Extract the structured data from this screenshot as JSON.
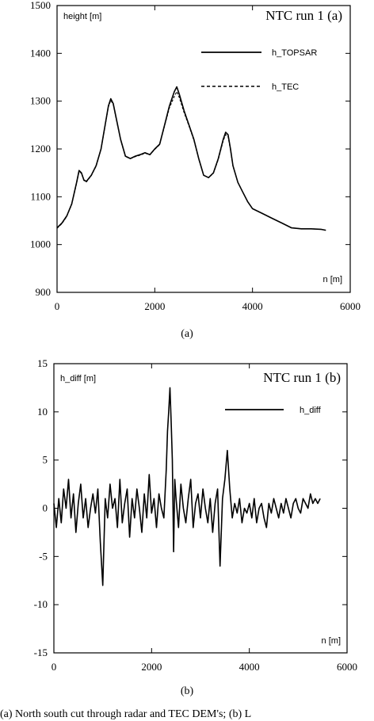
{
  "caption_fragment": "(a) North south cut through radar and TEC DEM's; (b) L",
  "chart_data": [
    {
      "type": "line",
      "title": "NTC run 1 (a)",
      "ylabel": "height [m]",
      "xlabel": "n [m]",
      "xlim": [
        0,
        6000
      ],
      "ylim": [
        900,
        1500
      ],
      "xticks": [
        0,
        2000,
        4000,
        6000
      ],
      "yticks": [
        900,
        1000,
        1100,
        1200,
        1300,
        1400,
        1500
      ],
      "legend_position": "top-right",
      "sublabel": "(a)",
      "series": [
        {
          "name": "h_TOPSAR",
          "style": "solid",
          "x": [
            0,
            100,
            200,
            300,
            400,
            450,
            500,
            550,
            600,
            700,
            800,
            900,
            1000,
            1050,
            1100,
            1150,
            1200,
            1300,
            1400,
            1500,
            1600,
            1700,
            1800,
            1900,
            2000,
            2100,
            2200,
            2300,
            2400,
            2450,
            2500,
            2600,
            2700,
            2800,
            2900,
            3000,
            3100,
            3200,
            3300,
            3400,
            3450,
            3500,
            3550,
            3600,
            3700,
            3800,
            3900,
            4000,
            4200,
            4400,
            4600,
            4800,
            5000,
            5200,
            5400,
            5500
          ],
          "y": [
            1035,
            1045,
            1060,
            1085,
            1130,
            1155,
            1150,
            1135,
            1132,
            1145,
            1165,
            1200,
            1260,
            1290,
            1305,
            1295,
            1270,
            1220,
            1185,
            1180,
            1185,
            1188,
            1192,
            1188,
            1200,
            1210,
            1250,
            1290,
            1320,
            1330,
            1315,
            1280,
            1250,
            1220,
            1180,
            1145,
            1140,
            1150,
            1180,
            1220,
            1235,
            1230,
            1200,
            1165,
            1130,
            1110,
            1090,
            1075,
            1065,
            1055,
            1045,
            1035,
            1033,
            1033,
            1032,
            1030
          ]
        },
        {
          "name": "h_TEC",
          "style": "dashed",
          "x": [
            0,
            100,
            200,
            300,
            400,
            450,
            500,
            550,
            600,
            700,
            800,
            900,
            1000,
            1050,
            1100,
            1150,
            1200,
            1300,
            1400,
            1500,
            1600,
            1700,
            1800,
            1900,
            2000,
            2100,
            2200,
            2300,
            2400,
            2450,
            2500,
            2600,
            2700,
            2800,
            2900,
            3000,
            3100,
            3200,
            3300,
            3400,
            3450,
            3500,
            3550,
            3600,
            3700,
            3800,
            3900,
            4000,
            4200,
            4400,
            4600,
            4800,
            5000,
            5200,
            5400,
            5500
          ],
          "y": [
            1034,
            1044,
            1059,
            1084,
            1128,
            1153,
            1149,
            1134,
            1131,
            1144,
            1164,
            1199,
            1258,
            1288,
            1302,
            1293,
            1268,
            1219,
            1184,
            1180,
            1184,
            1187,
            1191,
            1188,
            1199,
            1209,
            1248,
            1286,
            1310,
            1320,
            1308,
            1276,
            1248,
            1218,
            1179,
            1145,
            1140,
            1149,
            1178,
            1217,
            1230,
            1226,
            1198,
            1164,
            1130,
            1110,
            1090,
            1075,
            1065,
            1055,
            1045,
            1035,
            1033,
            1033,
            1032,
            1030
          ]
        }
      ]
    },
    {
      "type": "line",
      "title": "NTC run 1 (b)",
      "ylabel": "h_diff [m]",
      "xlabel": "n [m]",
      "xlim": [
        0,
        6000
      ],
      "ylim": [
        -15,
        15
      ],
      "xticks": [
        0,
        2000,
        4000,
        6000
      ],
      "yticks": [
        -15,
        -10,
        -5,
        0,
        5,
        10,
        15
      ],
      "legend_position": "top-right",
      "sublabel": "(b)",
      "series": [
        {
          "name": "h_diff",
          "style": "solid",
          "x": [
            0,
            50,
            100,
            150,
            200,
            250,
            300,
            350,
            400,
            450,
            500,
            550,
            600,
            650,
            700,
            750,
            800,
            850,
            900,
            950,
            1000,
            1050,
            1100,
            1150,
            1200,
            1250,
            1300,
            1350,
            1400,
            1450,
            1500,
            1550,
            1600,
            1650,
            1700,
            1750,
            1800,
            1850,
            1900,
            1950,
            2000,
            2050,
            2100,
            2150,
            2200,
            2250,
            2300,
            2325,
            2350,
            2375,
            2400,
            2425,
            2450,
            2475,
            2500,
            2550,
            2600,
            2650,
            2700,
            2750,
            2800,
            2850,
            2900,
            2950,
            3000,
            3050,
            3100,
            3150,
            3200,
            3250,
            3300,
            3350,
            3400,
            3450,
            3500,
            3550,
            3600,
            3650,
            3700,
            3750,
            3800,
            3850,
            3900,
            3950,
            4000,
            4050,
            4100,
            4150,
            4200,
            4250,
            4300,
            4350,
            4400,
            4450,
            4500,
            4550,
            4600,
            4650,
            4700,
            4750,
            4800,
            4850,
            4900,
            4950,
            5000,
            5050,
            5100,
            5150,
            5200,
            5250,
            5300,
            5350,
            5400,
            5450
          ],
          "y": [
            0.5,
            -2.0,
            1.0,
            -1.5,
            2.0,
            0.0,
            3.0,
            -1.0,
            1.5,
            -2.5,
            0.5,
            2.5,
            -1.0,
            1.0,
            -2.0,
            0.0,
            1.5,
            -0.5,
            2.0,
            -3.5,
            -8.0,
            1.0,
            -1.0,
            2.5,
            0.0,
            1.0,
            -2.0,
            3.0,
            -1.5,
            0.5,
            2.0,
            -3.0,
            1.0,
            -1.0,
            2.0,
            0.0,
            -2.5,
            1.5,
            -1.0,
            3.5,
            -0.5,
            1.0,
            -2.0,
            1.5,
            0.0,
            -1.0,
            4.0,
            8.0,
            10.0,
            12.5,
            9.0,
            5.0,
            -4.5,
            3.0,
            1.0,
            -2.0,
            2.5,
            0.0,
            -1.5,
            1.0,
            3.0,
            -2.0,
            0.5,
            1.5,
            -1.0,
            2.0,
            0.0,
            -1.5,
            1.0,
            -2.5,
            0.5,
            2.0,
            -6.0,
            1.0,
            3.0,
            6.0,
            2.0,
            -1.0,
            0.5,
            -0.5,
            1.0,
            -1.5,
            0.0,
            -0.5,
            0.5,
            -1.0,
            1.0,
            -1.5,
            0.0,
            0.5,
            -1.0,
            -2.0,
            0.5,
            -0.5,
            1.0,
            0.0,
            -1.0,
            0.5,
            -0.5,
            1.0,
            0.0,
            -1.0,
            0.5,
            1.0,
            0.0,
            -0.5,
            1.0,
            0.5,
            0.0,
            1.5,
            0.5,
            1.0,
            0.5,
            1.0
          ]
        }
      ]
    }
  ]
}
